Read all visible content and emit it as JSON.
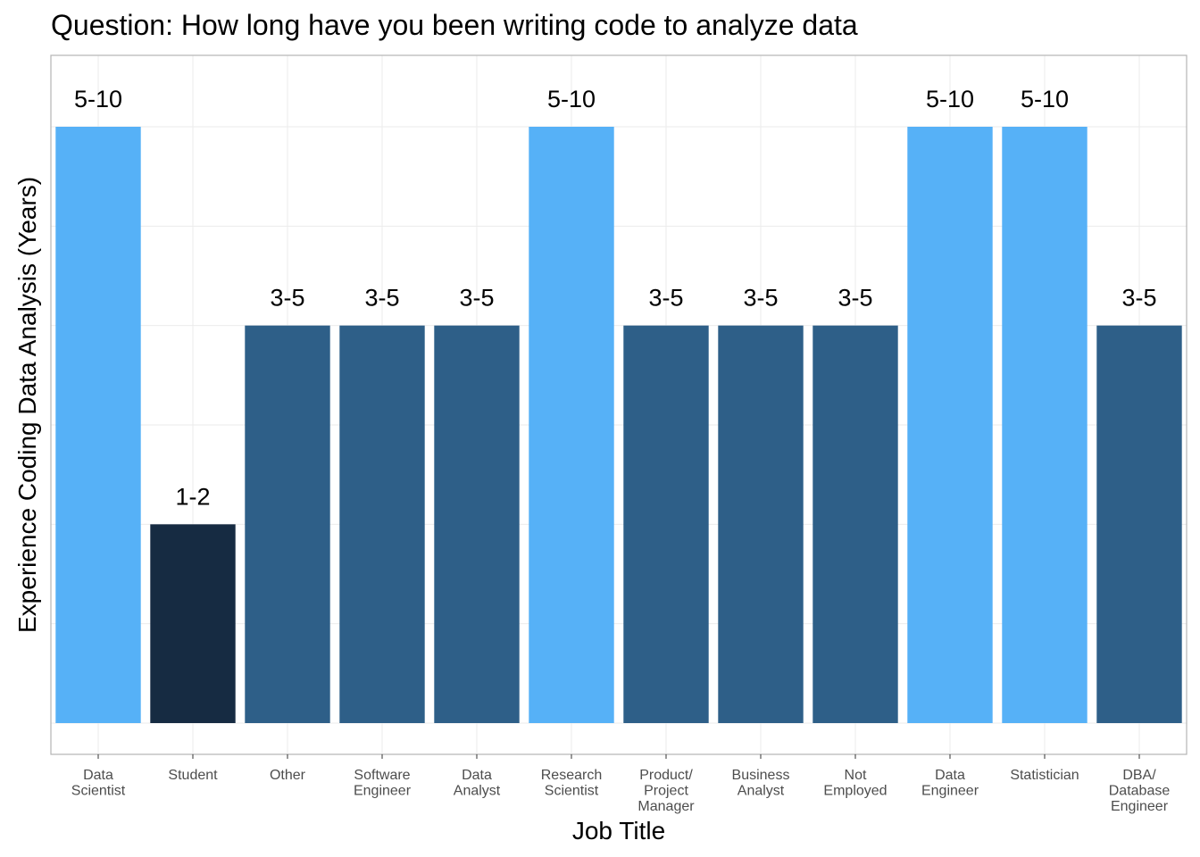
{
  "chart_data": {
    "type": "bar",
    "title": "Question: How long have you been writing code to analyze data",
    "xlabel": "Job Title",
    "ylabel": "Experience Coding Data Analysis (Years)",
    "categories": [
      [
        "Data",
        "Scientist"
      ],
      [
        "Student"
      ],
      [
        "Other"
      ],
      [
        "Software",
        "Engineer"
      ],
      [
        "Data",
        "Analyst"
      ],
      [
        "Research",
        "Scientist"
      ],
      [
        "Product/",
        "Project",
        "Manager"
      ],
      [
        "Business",
        "Analyst"
      ],
      [
        "Not",
        "Employed"
      ],
      [
        "Data",
        "Engineer"
      ],
      [
        "Statistician"
      ],
      [
        "DBA/",
        "Database",
        "Engineer"
      ]
    ],
    "labels": [
      "5-10",
      "1-2",
      "3-5",
      "3-5",
      "3-5",
      "5-10",
      "3-5",
      "3-5",
      "3-5",
      "5-10",
      "5-10",
      "3-5"
    ],
    "values": [
      3,
      1,
      2,
      2,
      2,
      3,
      2,
      2,
      2,
      3,
      3,
      2
    ],
    "ylim": [
      0,
      3.45
    ],
    "y_ticks_shown": false,
    "grid": true,
    "legend": "none",
    "colors": {
      "1-2": "#162b42",
      "3-5": "#2e5f88",
      "5-10": "#56b1f7",
      "grid": "#ebebeb",
      "panel_border": "#b3b3b3"
    }
  }
}
